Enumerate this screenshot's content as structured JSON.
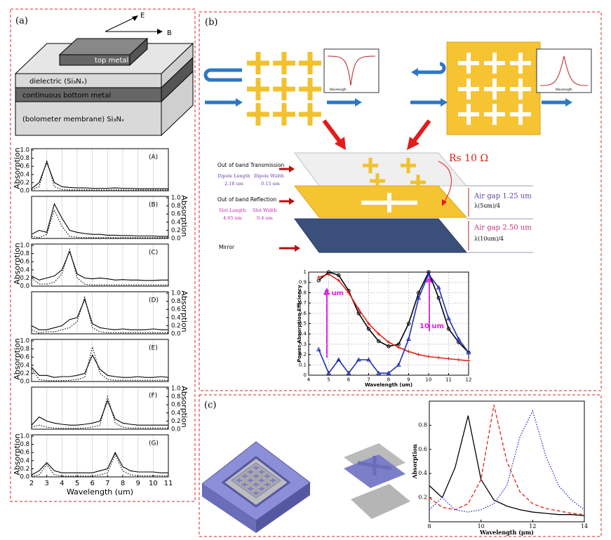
{
  "panels": {
    "a": "(a)",
    "b": "(b)",
    "c": "(c)"
  },
  "diagram_a": {
    "e": "E",
    "b": "B",
    "top_metal": "top metal",
    "dielectric": "dielectric (Si₃Nₓ)",
    "bottom_metal": "continuous bottom metal",
    "membrane": "(bolometer membrane) Si₃Nₓ"
  },
  "diagram_b": {
    "inset_label": "Wavelength",
    "transmission": "Out of band Transmission",
    "dipole_length": "Dipole Length",
    "dipole_length_value": "2.18 um",
    "dipole_width": "Dipole Width",
    "dipole_width_value": "0.15 um",
    "reflection": "Out of band Reflection",
    "slot_length": "Slot Length",
    "slot_length_value": "4.65 um",
    "slot_width": "Slot Width",
    "slot_width_value": "0.4 um",
    "mirror": "Mirror",
    "rs": "Rs 10 Ω",
    "gap1": "Air gap 1.25 um",
    "gap1_lambda": "λ(5um)/4",
    "gap2": "Air gap 2.50 um",
    "gap2_lambda": "λ(10um)/4"
  },
  "chart_data": [
    {
      "type": "line",
      "xlabel": "Wavelength (um)",
      "ylabel": "Absorption",
      "x": [
        2,
        2.5,
        3,
        3.5,
        4,
        4.5,
        5,
        5.5,
        6,
        6.5,
        7,
        7.5,
        8,
        8.5,
        9,
        9.5,
        10,
        10.5,
        11
      ],
      "xlim": [
        2,
        11
      ],
      "xticks": [
        2,
        3,
        4,
        5,
        6,
        7,
        8,
        9,
        10,
        11
      ],
      "ylim": [
        0,
        1
      ],
      "yticks": [
        {
          "value": 0,
          "label": "0.0"
        },
        {
          "value": 0.2,
          "label": "0.2"
        },
        {
          "value": 0.4,
          "label": "0.4"
        },
        {
          "value": 0.6,
          "label": "0.6"
        },
        {
          "value": 0.8,
          "label": "0.8"
        },
        {
          "value": 1,
          "label": "1.0"
        }
      ],
      "grid": true,
      "subplots": [
        {
          "label": "(A)",
          "axis": "left",
          "series": [
            {
              "style": "solid",
              "color": "#000000",
              "values": [
                0.05,
                0.2,
                0.7,
                0.2,
                0.1,
                0.08,
                0.07,
                0.07,
                0.06,
                0.06,
                0.06,
                0.07,
                0.06,
                0.06,
                0.05,
                0.05,
                0.05,
                0.05,
                0.05
              ]
            },
            {
              "style": "dotted",
              "color": "#000000",
              "values": [
                0.02,
                0.1,
                0.75,
                0.1,
                0.03,
                0.02,
                0.02,
                0.02,
                0.02,
                0.02,
                0.02,
                0.02,
                0.02,
                0.02,
                0.02,
                0.02,
                0.02,
                0.02,
                0.02
              ]
            }
          ]
        },
        {
          "label": "(B)",
          "axis": "right",
          "series": [
            {
              "style": "solid",
              "color": "#000000",
              "values": [
                0.1,
                0.2,
                0.15,
                0.85,
                0.5,
                0.2,
                0.15,
                0.12,
                0.1,
                0.1,
                0.08,
                0.08,
                0.07,
                0.07,
                0.06,
                0.06,
                0.06,
                0.05,
                0.05
              ]
            },
            {
              "style": "dotted",
              "color": "#000000",
              "values": [
                0.05,
                0.02,
                0.1,
                0.7,
                0.3,
                0.05,
                0.03,
                0.02,
                0.02,
                0.02,
                0.02,
                0.02,
                0.02,
                0.02,
                0.02,
                0.02,
                0.02,
                0.02,
                0.02
              ]
            }
          ]
        },
        {
          "label": "(C)",
          "axis": "left",
          "series": [
            {
              "style": "solid",
              "color": "#000000",
              "values": [
                0.25,
                0.15,
                0.2,
                0.25,
                0.4,
                0.85,
                0.3,
                0.2,
                0.18,
                0.2,
                0.18,
                0.15,
                0.16,
                0.15,
                0.15,
                0.14,
                0.14,
                0.15,
                0.15
              ]
            },
            {
              "style": "dotted",
              "color": "#000000",
              "values": [
                0.2,
                0.05,
                0.05,
                0.1,
                0.3,
                0.9,
                0.2,
                0.05,
                0.03,
                0.03,
                0.03,
                0.03,
                0.03,
                0.03,
                0.03,
                0.03,
                0.03,
                0.03,
                0.03
              ]
            }
          ]
        },
        {
          "label": "(D)",
          "axis": "right",
          "series": [
            {
              "style": "solid",
              "color": "#000000",
              "values": [
                0.2,
                0.1,
                0.1,
                0.15,
                0.2,
                0.35,
                0.4,
                0.85,
                0.25,
                0.15,
                0.12,
                0.1,
                0.12,
                0.1,
                0.1,
                0.1,
                0.12,
                0.1,
                0.1
              ]
            },
            {
              "style": "dotted",
              "color": "#000000",
              "values": [
                0.1,
                0.02,
                0.05,
                0.05,
                0.1,
                0.15,
                0.3,
                0.9,
                0.15,
                0.05,
                0.03,
                0.03,
                0.03,
                0.03,
                0.03,
                0.03,
                0.03,
                0.03,
                0.03
              ]
            }
          ]
        },
        {
          "label": "(E)",
          "axis": "left",
          "series": [
            {
              "style": "solid",
              "color": "#000000",
              "values": [
                0.35,
                0.15,
                0.15,
                0.1,
                0.12,
                0.12,
                0.15,
                0.2,
                0.65,
                0.3,
                0.15,
                0.12,
                0.1,
                0.1,
                0.12,
                0.1,
                0.1,
                0.12,
                0.1
              ]
            },
            {
              "style": "dotted",
              "color": "#000000",
              "values": [
                0.3,
                0.05,
                0.02,
                0.02,
                0.02,
                0.03,
                0.05,
                0.1,
                0.85,
                0.2,
                0.05,
                0.03,
                0.03,
                0.03,
                0.03,
                0.03,
                0.03,
                0.03,
                0.03
              ]
            }
          ]
        },
        {
          "label": "(F)",
          "axis": "right",
          "series": [
            {
              "style": "solid",
              "color": "#000000",
              "values": [
                0.1,
                0.3,
                0.2,
                0.15,
                0.12,
                0.1,
                0.1,
                0.12,
                0.15,
                0.2,
                0.7,
                0.25,
                0.15,
                0.12,
                0.1,
                0.1,
                0.1,
                0.1,
                0.1
              ]
            },
            {
              "style": "dotted",
              "color": "#000000",
              "values": [
                0.05,
                0.1,
                0.05,
                0.03,
                0.02,
                0.02,
                0.02,
                0.03,
                0.05,
                0.1,
                0.8,
                0.15,
                0.05,
                0.03,
                0.03,
                0.03,
                0.03,
                0.03,
                0.03
              ]
            }
          ]
        },
        {
          "label": "(G)",
          "axis": "left",
          "series": [
            {
              "style": "solid",
              "color": "#000000",
              "values": [
                0.05,
                0.15,
                0.35,
                0.15,
                0.1,
                0.1,
                0.1,
                0.1,
                0.1,
                0.15,
                0.2,
                0.6,
                0.25,
                0.15,
                0.12,
                0.12,
                0.12,
                0.1,
                0.1
              ]
            },
            {
              "style": "dotted",
              "color": "#000000",
              "values": [
                0.02,
                0.05,
                0.3,
                0.05,
                0.02,
                0.02,
                0.02,
                0.02,
                0.02,
                0.05,
                0.1,
                0.55,
                0.15,
                0.05,
                0.03,
                0.03,
                0.03,
                0.03,
                0.03
              ]
            }
          ]
        }
      ]
    },
    {
      "type": "line",
      "xlabel": "Wavelength (um)",
      "ylabel": "Power Absorption Efficiency",
      "x": [
        4.5,
        5,
        5.5,
        6,
        6.5,
        7,
        7.5,
        8,
        8.5,
        9,
        9.5,
        10,
        10.5,
        11,
        11.5,
        12
      ],
      "xlim": [
        4,
        12
      ],
      "xticks": [
        4,
        5,
        6,
        7,
        8,
        9,
        10,
        11,
        12
      ],
      "ylim": [
        0,
        1
      ],
      "yticks": [
        0,
        0.1,
        0.2,
        0.3,
        0.4,
        0.5,
        0.6,
        0.7,
        0.8,
        0.9,
        1
      ],
      "grid": true,
      "annotations": [
        "5 um",
        "10 um"
      ],
      "series": [
        {
          "color": "#000000",
          "marker": "circle",
          "values": [
            0.92,
            1.0,
            0.97,
            0.82,
            0.6,
            0.45,
            0.33,
            0.28,
            0.3,
            0.5,
            0.8,
            1.0,
            0.75,
            0.45,
            0.32,
            0.22
          ]
        },
        {
          "color": "#e0201b",
          "marker": "plus",
          "values": [
            0.95,
            0.98,
            0.92,
            0.8,
            0.64,
            0.5,
            0.4,
            0.32,
            0.27,
            0.23,
            0.2,
            0.18,
            0.17,
            0.16,
            0.15,
            0.14
          ]
        },
        {
          "color": "#1f2fb5",
          "marker": "triangle",
          "values": [
            0.25,
            0.02,
            0.15,
            0.02,
            0.15,
            0.15,
            0.02,
            0.02,
            0.1,
            0.35,
            0.75,
            0.98,
            0.85,
            0.55,
            0.35,
            0.22
          ]
        }
      ]
    },
    {
      "type": "line",
      "xlabel": "Wavelength (μm)",
      "ylabel": "Absorption",
      "x": [
        8,
        8.5,
        9,
        9.5,
        10,
        10.5,
        11,
        11.5,
        12,
        12.5,
        13,
        13.5,
        14
      ],
      "xlim": [
        8,
        14
      ],
      "xticks": [
        8,
        10,
        12,
        14
      ],
      "ylim": [
        0,
        1
      ],
      "yticks": [
        0.2,
        0.4,
        0.6,
        0.8
      ],
      "series": [
        {
          "color": "#000000",
          "style": "solid",
          "values": [
            0.3,
            0.2,
            0.45,
            0.88,
            0.35,
            0.18,
            0.13,
            0.1,
            0.08,
            0.07,
            0.06,
            0.06,
            0.05
          ]
        },
        {
          "color": "#e0201b",
          "style": "dashed",
          "values": [
            0.2,
            0.12,
            0.1,
            0.15,
            0.35,
            0.97,
            0.5,
            0.25,
            0.15,
            0.11,
            0.09,
            0.07,
            0.06
          ]
        },
        {
          "color": "#1f2fd0",
          "style": "dotted",
          "values": [
            0.1,
            0.2,
            0.1,
            0.08,
            0.1,
            0.15,
            0.3,
            0.7,
            0.92,
            0.55,
            0.3,
            0.18,
            0.1
          ]
        }
      ]
    }
  ]
}
